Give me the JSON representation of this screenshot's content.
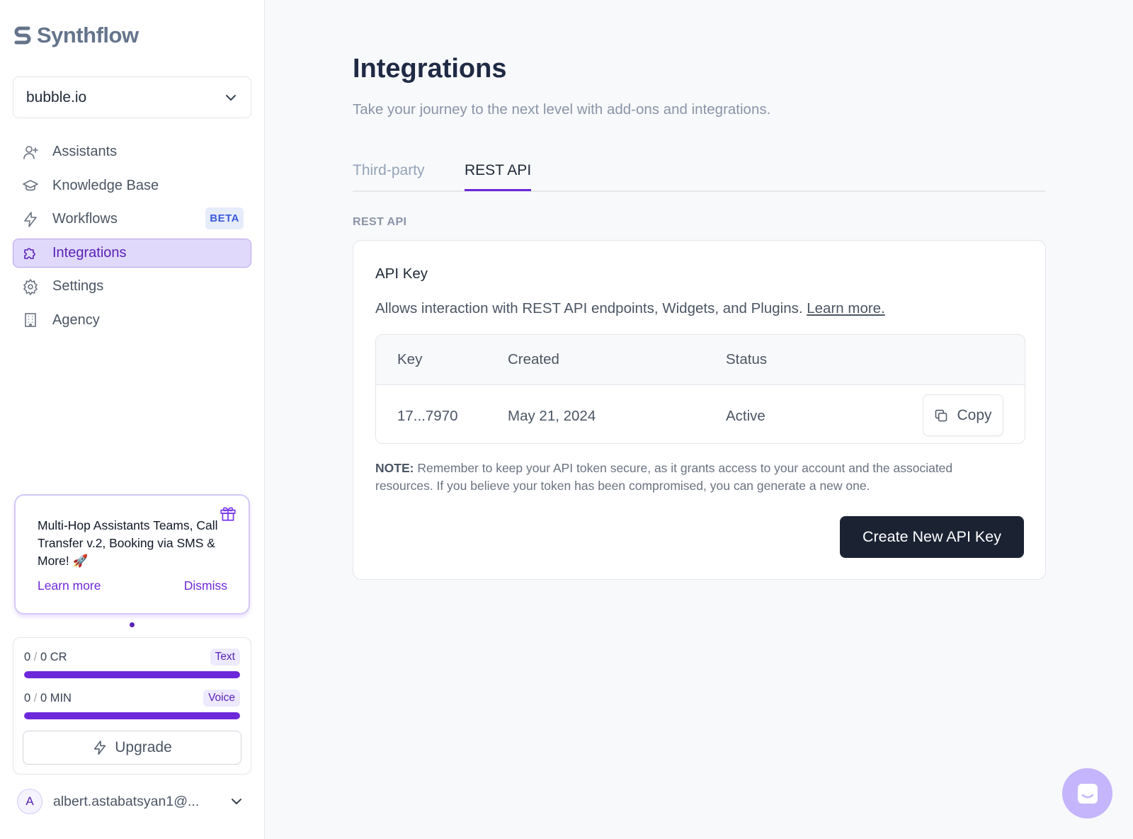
{
  "brand": {
    "name": "Synthflow"
  },
  "workspace": {
    "name": "bubble.io"
  },
  "nav": {
    "items": [
      {
        "label": "Assistants",
        "icon": "user-plus-icon"
      },
      {
        "label": "Knowledge Base",
        "icon": "graduation-cap-icon"
      },
      {
        "label": "Workflows",
        "icon": "lightning-icon",
        "badge": "BETA"
      },
      {
        "label": "Integrations",
        "icon": "puzzle-icon",
        "active": true
      },
      {
        "label": "Settings",
        "icon": "gear-icon"
      },
      {
        "label": "Agency",
        "icon": "building-icon"
      }
    ]
  },
  "promo": {
    "text": "Multi-Hop Assistants Teams, Call Transfer v.2, Booking via SMS & More! 🚀",
    "learn_more": "Learn more",
    "dismiss": "Dismiss"
  },
  "usage": {
    "text": {
      "used": "0",
      "sep": "/",
      "total": "0 CR",
      "tag": "Text",
      "fill": 1.0
    },
    "voice": {
      "used": "0",
      "sep": "/",
      "total": "0 MIN",
      "tag": "Voice",
      "fill": 1.0
    },
    "upgrade_label": "Upgrade"
  },
  "user": {
    "initial": "A",
    "email": "albert.astabatsyan1@..."
  },
  "main": {
    "title": "Integrations",
    "subtitle": "Take your journey to the next level with add-ons and integrations.",
    "tabs": [
      "Third-party",
      "REST API"
    ],
    "section_label": "REST API",
    "card": {
      "title": "API Key",
      "description": "Allows interaction with REST API endpoints, Widgets, and Plugins.",
      "learn_more": "Learn more.",
      "table": {
        "headers": [
          "Key",
          "Created",
          "Status"
        ],
        "row": {
          "key": "17...7970",
          "created": "May 21, 2024",
          "status": "Active"
        },
        "copy_label": "Copy"
      },
      "note_label": "NOTE:",
      "note_text": "Remember to keep your API token secure, as it grants access to your account and the associated resources. If you believe your token has been compromised, you can generate a new one.",
      "create_button": "Create New API Key"
    }
  },
  "colors": {
    "accent": "#6d28d9",
    "active_bg": "#e0d9fb",
    "dark_button": "#1b2333",
    "chat_bubble": "#c4b5fd"
  }
}
